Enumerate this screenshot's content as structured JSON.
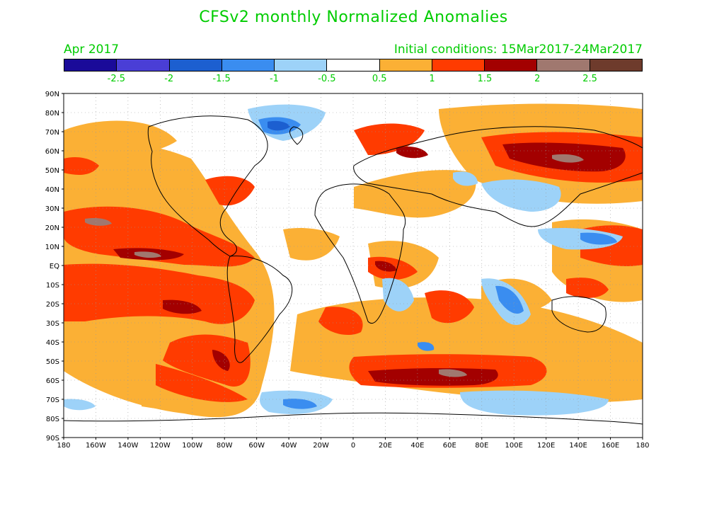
{
  "title": "CFSv2 monthly Normalized Anomalies",
  "month_label": "Apr 2017",
  "init_label": "Initial conditions: 15Mar2017-24Mar2017",
  "colorbar": {
    "colors": [
      "#1a0a99",
      "#4a3ed6",
      "#1c5fd0",
      "#3a8df0",
      "#9dd2f8",
      "#ffffff",
      "#fbb035",
      "#ff3b00",
      "#a30000",
      "#a0786f",
      "#6e3b2c"
    ],
    "labels": [
      "-2.5",
      "-2",
      "-1.5",
      "-1",
      "-0.5",
      "0.5",
      "1",
      "1.5",
      "2",
      "2.5"
    ]
  },
  "lat_labels": [
    "90N",
    "80N",
    "70N",
    "60N",
    "50N",
    "40N",
    "30N",
    "20N",
    "10N",
    "EQ",
    "10S",
    "20S",
    "30S",
    "40S",
    "50S",
    "60S",
    "70S",
    "80S",
    "90S"
  ],
  "lon_labels": [
    "180",
    "160W",
    "140W",
    "120W",
    "100W",
    "80W",
    "60W",
    "40W",
    "20W",
    "0",
    "20E",
    "40E",
    "60E",
    "80E",
    "100E",
    "120E",
    "140E",
    "160E",
    "180"
  ]
}
